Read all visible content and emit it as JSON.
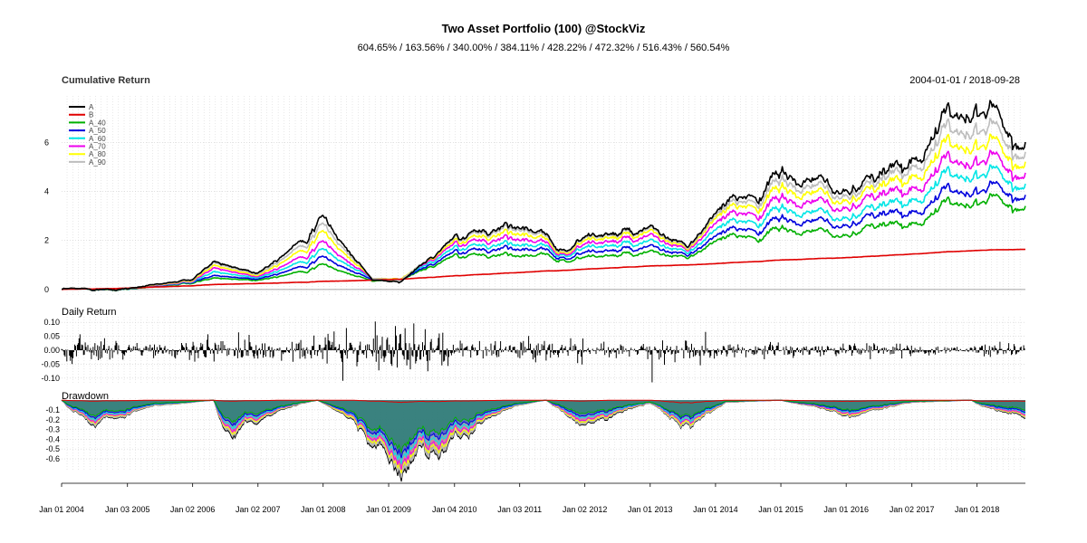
{
  "header": {
    "title": "Two Asset Portfolio (100) @StockViz",
    "subtitle": "604.65% / 163.56% / 340.00% / 384.11% / 428.22% / 472.32% / 516.43% / 560.54%"
  },
  "colors": {
    "A": "#000000",
    "B": "#e00000",
    "A_40": "#00b000",
    "A_50": "#0000dd",
    "A_60": "#00e6e6",
    "A_70": "#ee00ee",
    "A_80": "#ffff00",
    "A_90": "#bdbdbd"
  },
  "chart_data": [
    {
      "type": "line",
      "title": "Cumulative Return",
      "date_range": "2004-01-01 / 2018-09-28",
      "yticks": [
        "0",
        "2",
        "4",
        "6"
      ],
      "ylim": [
        -0.3,
        7.9
      ],
      "grid": true,
      "legend_position": "top-left",
      "legend": [
        "A",
        "B",
        "A_40",
        "A_50",
        "A_60",
        "A_70",
        "A_80",
        "A_90"
      ],
      "x": [
        "2004-01",
        "2005-01",
        "2006-01",
        "2006-05",
        "2007-01",
        "2008-01",
        "2008-10",
        "2009-03",
        "2010-01",
        "2011-01",
        "2011-09",
        "2012-01",
        "2013-01",
        "2013-08",
        "2014-01",
        "2015-01",
        "2016-01",
        "2016-06",
        "2017-01",
        "2018-01",
        "2018-09"
      ],
      "series": [
        {
          "name": "A",
          "values": [
            0,
            0.05,
            0.4,
            1.1,
            0.7,
            2.9,
            0.4,
            0.3,
            2.0,
            2.8,
            1.6,
            2.2,
            2.3,
            1.7,
            3.0,
            4.6,
            4.0,
            4.2,
            5.5,
            7.8,
            6.0
          ]
        },
        {
          "name": "B",
          "values": [
            0,
            0.06,
            0.15,
            0.2,
            0.25,
            0.33,
            0.38,
            0.42,
            0.55,
            0.7,
            0.78,
            0.83,
            0.95,
            1.0,
            1.05,
            1.2,
            1.3,
            1.35,
            1.45,
            1.6,
            1.64
          ]
        },
        {
          "name": "A_40",
          "values": [
            0,
            0.03,
            0.25,
            0.45,
            0.4,
            1.0,
            0.35,
            0.4,
            1.3,
            1.5,
            1.2,
            1.35,
            1.4,
            1.25,
            1.9,
            2.4,
            2.2,
            2.4,
            2.8,
            3.8,
            3.4
          ]
        },
        {
          "name": "A_50",
          "values": [
            0,
            0.04,
            0.28,
            0.55,
            0.45,
            1.3,
            0.4,
            0.4,
            1.45,
            1.8,
            1.3,
            1.55,
            1.6,
            1.35,
            2.1,
            2.8,
            2.6,
            2.8,
            3.3,
            4.3,
            3.85
          ]
        },
        {
          "name": "A_60",
          "values": [
            0,
            0.045,
            0.3,
            0.7,
            0.5,
            1.6,
            0.45,
            0.42,
            1.6,
            2.0,
            1.4,
            1.75,
            1.8,
            1.45,
            2.35,
            3.2,
            2.9,
            3.1,
            3.8,
            5.0,
            4.3
          ]
        },
        {
          "name": "A_70",
          "values": [
            0,
            0.05,
            0.32,
            0.85,
            0.55,
            1.9,
            0.45,
            0.42,
            1.75,
            2.25,
            1.45,
            1.9,
            2.0,
            1.55,
            2.6,
            3.6,
            3.3,
            3.5,
            4.3,
            5.6,
            4.75
          ]
        },
        {
          "name": "A_80",
          "values": [
            0,
            0.05,
            0.35,
            0.95,
            0.6,
            2.3,
            0.45,
            0.42,
            1.85,
            2.5,
            1.5,
            2.05,
            2.15,
            1.6,
            2.8,
            4.0,
            3.6,
            3.8,
            4.8,
            6.3,
            5.2
          ]
        },
        {
          "name": "A_90",
          "values": [
            0,
            0.05,
            0.38,
            1.05,
            0.65,
            2.6,
            0.45,
            0.38,
            1.95,
            2.7,
            1.55,
            2.15,
            2.25,
            1.65,
            2.9,
            4.3,
            3.8,
            4.0,
            5.2,
            7.0,
            5.6
          ]
        }
      ]
    },
    {
      "type": "bar",
      "title": "Daily Return",
      "yticks": [
        "0.10",
        "0.05",
        "0.00",
        "-0.05",
        "-0.10"
      ],
      "ylim": [
        -0.12,
        0.12
      ],
      "volatility_by_year": {
        "2004": 0.022,
        "2005": 0.014,
        "2006": 0.02,
        "2007": 0.018,
        "2008": 0.035,
        "2009": 0.04,
        "2010": 0.016,
        "2011": 0.018,
        "2012": 0.012,
        "2013": 0.018,
        "2014": 0.012,
        "2015": 0.01,
        "2016": 0.012,
        "2017": 0.008,
        "2018": 0.012
      }
    },
    {
      "type": "line",
      "title": "Drawdown",
      "yticks": [
        "-0.1",
        "-0.2",
        "-0.3",
        "-0.4",
        "-0.5",
        "-0.6"
      ],
      "ylim": [
        -0.72,
        0.02
      ],
      "x": [
        "2004-01",
        "2004-06",
        "2005-06",
        "2006-05",
        "2006-07",
        "2007-06",
        "2007-12",
        "2008-06",
        "2009-03",
        "2009-12",
        "2010-12",
        "2011-06",
        "2011-12",
        "2012-06",
        "2013-01",
        "2013-08",
        "2014-03",
        "2015-01",
        "2015-09",
        "2016-02",
        "2017-01",
        "2017-12",
        "2018-01",
        "2018-09"
      ],
      "series": [
        {
          "name": "A",
          "values": [
            0,
            -0.25,
            -0.05,
            0,
            -0.35,
            -0.08,
            0,
            -0.2,
            -0.7,
            -0.45,
            -0.05,
            0,
            -0.28,
            -0.15,
            -0.03,
            -0.3,
            -0.02,
            0,
            -0.1,
            -0.15,
            -0.02,
            0,
            -0.05,
            -0.18
          ]
        },
        {
          "name": "B",
          "values": [
            0,
            -0.01,
            0,
            0,
            -0.01,
            0,
            0,
            0,
            -0.02,
            -0.01,
            0,
            0,
            -0.01,
            0,
            0,
            -0.03,
            0,
            0,
            -0.01,
            -0.01,
            0,
            0,
            -0.01,
            -0.01
          ]
        },
        {
          "name": "A_40",
          "values": [
            0,
            -0.15,
            -0.03,
            0,
            -0.2,
            -0.05,
            0,
            -0.12,
            -0.45,
            -0.25,
            -0.03,
            0,
            -0.15,
            -0.08,
            -0.02,
            -0.18,
            -0.01,
            0,
            -0.06,
            -0.09,
            -0.01,
            0,
            -0.03,
            -0.1
          ]
        },
        {
          "name": "A_50",
          "values": [
            0,
            -0.17,
            -0.035,
            0,
            -0.23,
            -0.055,
            0,
            -0.14,
            -0.5,
            -0.29,
            -0.035,
            0,
            -0.18,
            -0.09,
            -0.02,
            -0.2,
            -0.012,
            0,
            -0.07,
            -0.1,
            -0.012,
            0,
            -0.035,
            -0.12
          ]
        },
        {
          "name": "A_60",
          "values": [
            0,
            -0.19,
            -0.04,
            0,
            -0.26,
            -0.06,
            0,
            -0.15,
            -0.55,
            -0.33,
            -0.04,
            0,
            -0.2,
            -0.11,
            -0.022,
            -0.23,
            -0.014,
            0,
            -0.075,
            -0.11,
            -0.014,
            0,
            -0.04,
            -0.13
          ]
        },
        {
          "name": "A_70",
          "values": [
            0,
            -0.21,
            -0.042,
            0,
            -0.29,
            -0.065,
            0,
            -0.16,
            -0.6,
            -0.37,
            -0.042,
            0,
            -0.23,
            -0.12,
            -0.025,
            -0.25,
            -0.016,
            0,
            -0.085,
            -0.125,
            -0.016,
            0,
            -0.042,
            -0.15
          ]
        },
        {
          "name": "A_80",
          "values": [
            0,
            -0.22,
            -0.045,
            0,
            -0.31,
            -0.07,
            0,
            -0.18,
            -0.63,
            -0.4,
            -0.045,
            0,
            -0.25,
            -0.13,
            -0.027,
            -0.27,
            -0.018,
            0,
            -0.09,
            -0.135,
            -0.018,
            0,
            -0.045,
            -0.16
          ]
        },
        {
          "name": "A_90",
          "values": [
            0,
            -0.24,
            -0.048,
            0,
            -0.33,
            -0.075,
            0,
            -0.19,
            -0.67,
            -0.43,
            -0.048,
            0,
            -0.27,
            -0.14,
            -0.029,
            -0.29,
            -0.019,
            0,
            -0.095,
            -0.145,
            -0.019,
            0,
            -0.048,
            -0.17
          ]
        }
      ]
    }
  ],
  "xaxis": {
    "labels": [
      "Jan 01 2004",
      "Jan 03 2005",
      "Jan 02 2006",
      "Jan 02 2007",
      "Jan 01 2008",
      "Jan 01 2009",
      "Jan 04 2010",
      "Jan 03 2011",
      "Jan 02 2012",
      "Jan 01 2013",
      "Jan 01 2014",
      "Jan 01 2015",
      "Jan 01 2016",
      "Jan 02 2017",
      "Jan 01 2018"
    ]
  }
}
